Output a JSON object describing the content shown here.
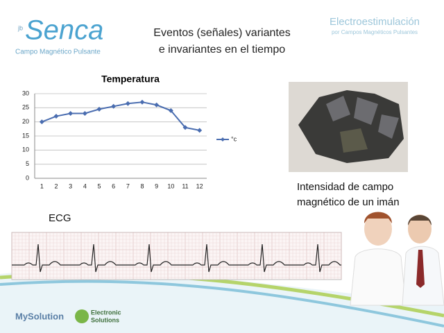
{
  "logo": {
    "superscript": "jb",
    "name": "Senca",
    "tagline": "Campo Magnético Pulsante"
  },
  "header": {
    "title_lines": [
      "Eventos (señales) variantes",
      "e invariantes en el tiempo"
    ],
    "brand": "Electroestimulación",
    "brand_sub": "por Campos Magnéticos Pulsantes"
  },
  "caption_lines": [
    "Intensidad de campo",
    "magnético de un imán"
  ],
  "ecg_label": "ECG",
  "footer": {
    "left_logo": "MySolution",
    "right_logo_lines": [
      "Electronic",
      "Solutions"
    ]
  },
  "chart_data": {
    "type": "line",
    "title": "Temperatura",
    "categories": [
      "1",
      "2",
      "3",
      "4",
      "5",
      "6",
      "7",
      "8",
      "9",
      "10",
      "11",
      "12"
    ],
    "series": [
      {
        "name": "°c",
        "color": "#4a6db0",
        "values": [
          20,
          22,
          23,
          23,
          24.5,
          25.5,
          26.5,
          27,
          26,
          24,
          18,
          17
        ]
      }
    ],
    "ylim": [
      0,
      30
    ],
    "yticks": [
      0,
      5,
      10,
      15,
      20,
      25,
      30
    ],
    "grid": true,
    "legend": "right"
  }
}
